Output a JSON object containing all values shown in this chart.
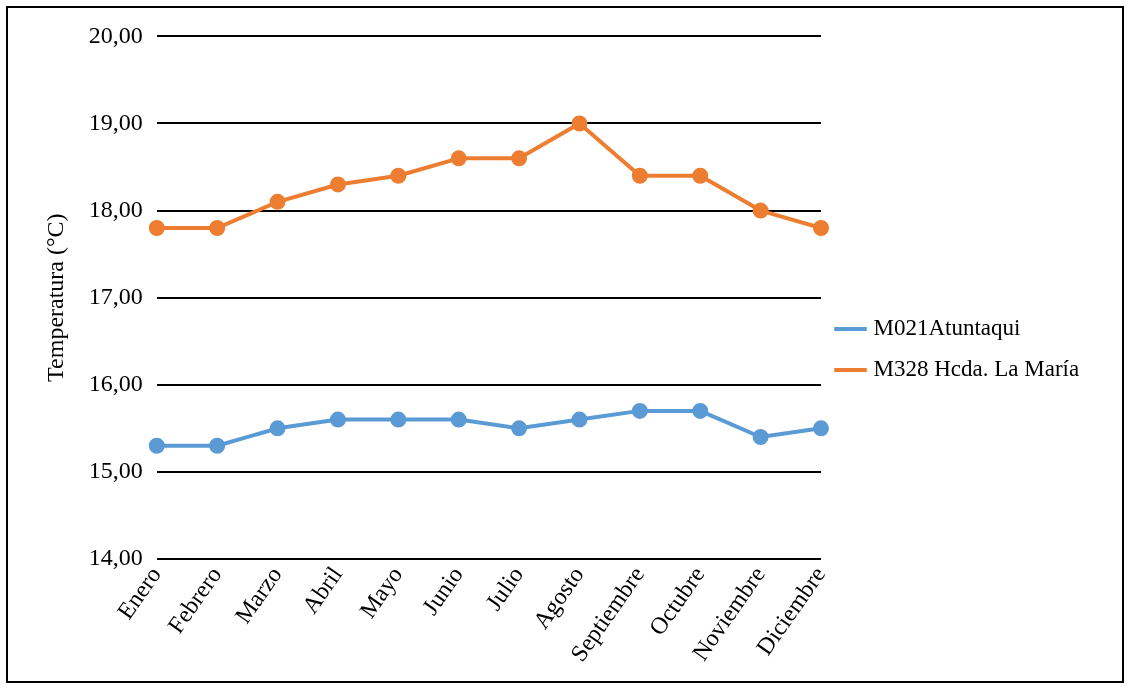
{
  "chart_data": {
    "type": "line",
    "ylabel": "Temperatura (°C)",
    "categories": [
      "Enero",
      "Febrero",
      "Marzo",
      "Abril",
      "Mayo",
      "Junio",
      "Julio",
      "Agosto",
      "Septiembre",
      "Octubre",
      "Noviembre",
      "Diciembre"
    ],
    "series": [
      {
        "name": "M021Atuntaqui",
        "color": "#5b9bd5",
        "values": [
          15.3,
          15.3,
          15.5,
          15.6,
          15.6,
          15.6,
          15.5,
          15.6,
          15.7,
          15.7,
          15.4,
          15.5
        ]
      },
      {
        "name": "M328 Hcda. La María",
        "color": "#ed7d31",
        "values": [
          17.8,
          17.8,
          18.1,
          18.3,
          18.4,
          18.6,
          18.6,
          19.0,
          18.4,
          18.4,
          18.0,
          17.8
        ]
      }
    ],
    "ylim": [
      14,
      20
    ],
    "yticks": [
      {
        "value": 14,
        "label": "14,00"
      },
      {
        "value": 15,
        "label": "15,00"
      },
      {
        "value": 16,
        "label": "16,00"
      },
      {
        "value": 17,
        "label": "17,00"
      },
      {
        "value": 18,
        "label": "18,00"
      },
      {
        "value": 19,
        "label": "19,00"
      },
      {
        "value": 20,
        "label": "20,00"
      }
    ],
    "grid": "y",
    "legend": "right",
    "marker": "circle",
    "line_style": "solid"
  }
}
